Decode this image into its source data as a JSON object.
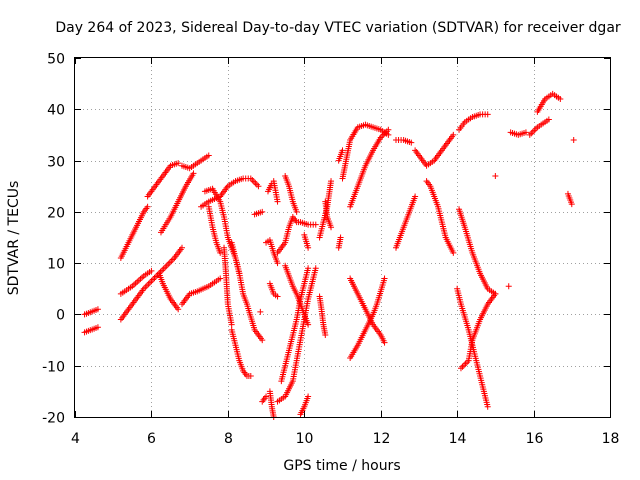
{
  "chart_data": {
    "type": "scatter",
    "title": "Day 264 of 2023, Sidereal Day-to-day VTEC variation (SDTVAR) for receiver dgar",
    "xlabel": "GPS time / hours",
    "ylabel": "SDTVAR / TECUs",
    "xlim": [
      4,
      18
    ],
    "ylim": [
      -20,
      50
    ],
    "xticks": [
      4,
      6,
      8,
      10,
      12,
      14,
      16,
      18
    ],
    "yticks": [
      -20,
      -10,
      0,
      10,
      20,
      30,
      40,
      50
    ],
    "grid": true,
    "legend": "none",
    "marker": "plus",
    "color": "#ff0000",
    "series": [
      {
        "points": [
          [
            4.25,
            0
          ],
          [
            4.6,
            1
          ]
        ]
      },
      {
        "points": [
          [
            4.25,
            -3.5
          ],
          [
            4.6,
            -2.5
          ]
        ]
      },
      {
        "points": [
          [
            5.2,
            11
          ],
          [
            5.4,
            14
          ],
          [
            5.6,
            17
          ],
          [
            5.8,
            20
          ],
          [
            5.9,
            21
          ]
        ]
      },
      {
        "points": [
          [
            5.2,
            4
          ],
          [
            5.5,
            5.5
          ],
          [
            5.8,
            7.5
          ],
          [
            6.0,
            8.5
          ]
        ]
      },
      {
        "points": [
          [
            5.2,
            -1
          ],
          [
            5.4,
            1
          ],
          [
            5.6,
            3
          ],
          [
            5.8,
            5
          ],
          [
            6.0,
            6.5
          ],
          [
            6.2,
            8
          ],
          [
            6.4,
            9.5
          ],
          [
            6.6,
            11
          ],
          [
            6.8,
            13
          ]
        ]
      },
      {
        "points": [
          [
            5.9,
            23
          ],
          [
            6.1,
            25
          ],
          [
            6.3,
            27
          ],
          [
            6.5,
            29
          ],
          [
            6.7,
            29.5
          ]
        ]
      },
      {
        "points": [
          [
            6.2,
            8
          ],
          [
            6.3,
            6
          ],
          [
            6.5,
            3
          ],
          [
            6.7,
            1
          ]
        ]
      },
      {
        "points": [
          [
            6.25,
            16
          ],
          [
            6.5,
            19
          ],
          [
            6.7,
            22
          ],
          [
            6.9,
            25
          ],
          [
            7.1,
            27.5
          ]
        ]
      },
      {
        "points": [
          [
            6.8,
            29
          ],
          [
            7.0,
            28.5
          ],
          [
            7.3,
            30
          ],
          [
            7.5,
            31
          ]
        ]
      },
      {
        "points": [
          [
            6.8,
            2
          ],
          [
            7.0,
            4
          ],
          [
            7.2,
            4.5
          ],
          [
            7.5,
            5.5
          ],
          [
            7.6,
            6
          ],
          [
            7.8,
            7
          ]
        ]
      },
      {
        "points": [
          [
            7.4,
            24
          ],
          [
            7.6,
            24.5
          ],
          [
            7.8,
            22
          ],
          [
            7.9,
            19
          ],
          [
            8.0,
            15
          ],
          [
            8.2,
            11
          ],
          [
            8.3,
            8
          ]
        ]
      },
      {
        "points": [
          [
            7.5,
            21
          ],
          [
            7.6,
            17
          ],
          [
            7.7,
            14
          ],
          [
            7.8,
            12
          ]
        ]
      },
      {
        "points": [
          [
            7.9,
            13
          ],
          [
            7.95,
            8
          ],
          [
            8.0,
            2
          ],
          [
            8.1,
            -2
          ]
        ]
      },
      {
        "points": [
          [
            7.3,
            21
          ],
          [
            7.5,
            22
          ],
          [
            7.8,
            23
          ],
          [
            8.0,
            25
          ],
          [
            8.2,
            26
          ],
          [
            8.4,
            26.5
          ],
          [
            8.6,
            26.5
          ],
          [
            8.8,
            25
          ]
        ]
      },
      {
        "points": [
          [
            8.1,
            14
          ],
          [
            8.3,
            8
          ],
          [
            8.4,
            4
          ],
          [
            8.5,
            2
          ],
          [
            8.7,
            -3
          ],
          [
            8.9,
            -5
          ]
        ]
      },
      {
        "points": [
          [
            8.1,
            -3
          ],
          [
            8.2,
            -6
          ],
          [
            8.3,
            -9
          ],
          [
            8.4,
            -11
          ],
          [
            8.5,
            -12
          ],
          [
            8.6,
            -12
          ]
        ]
      },
      {
        "points": [
          [
            8.7,
            19.5
          ],
          [
            8.9,
            20
          ],
          [
            8.85,
            0.5
          ],
          [
            9.05,
            24
          ],
          [
            9.15,
            25.5
          ]
        ]
      },
      {
        "points": [
          [
            8.9,
            -17
          ],
          [
            9.0,
            -16
          ]
        ]
      },
      {
        "points": [
          [
            9.2,
            26
          ],
          [
            9.3,
            22
          ]
        ]
      },
      {
        "points": [
          [
            9.0,
            14
          ],
          [
            9.1,
            14.5
          ],
          [
            9.2,
            12
          ],
          [
            9.3,
            10
          ]
        ]
      },
      {
        "points": [
          [
            9.1,
            6
          ],
          [
            9.2,
            4
          ],
          [
            9.3,
            3.5
          ]
        ]
      },
      {
        "points": [
          [
            9.1,
            -15
          ],
          [
            9.15,
            -18
          ],
          [
            9.2,
            -20
          ]
        ]
      },
      {
        "points": [
          [
            9.3,
            -17
          ],
          [
            9.5,
            -16
          ],
          [
            9.7,
            -13
          ],
          [
            9.8,
            -9
          ],
          [
            9.9,
            -5
          ],
          [
            10.0,
            -1
          ],
          [
            10.1,
            3
          ],
          [
            10.2,
            6
          ],
          [
            10.3,
            9
          ]
        ]
      },
      {
        "points": [
          [
            9.4,
            -13
          ],
          [
            9.5,
            -10
          ],
          [
            9.6,
            -7
          ],
          [
            9.7,
            -4
          ],
          [
            9.8,
            -1
          ],
          [
            9.9,
            3
          ],
          [
            10.0,
            6
          ],
          [
            10.1,
            9
          ]
        ]
      },
      {
        "points": [
          [
            9.3,
            12
          ],
          [
            9.5,
            14
          ],
          [
            9.6,
            17
          ],
          [
            9.7,
            19
          ],
          [
            9.8,
            18
          ],
          [
            9.9,
            18
          ],
          [
            10.1,
            17.5
          ],
          [
            10.3,
            17.5
          ]
        ]
      },
      {
        "points": [
          [
            9.5,
            9.5
          ],
          [
            9.6,
            7.5
          ],
          [
            9.7,
            5.5
          ],
          [
            9.8,
            4
          ],
          [
            9.9,
            2
          ],
          [
            10.0,
            0
          ],
          [
            10.1,
            -2
          ]
        ]
      },
      {
        "points": [
          [
            9.5,
            27
          ],
          [
            9.6,
            25
          ],
          [
            9.7,
            22
          ],
          [
            9.8,
            20
          ]
        ]
      },
      {
        "points": [
          [
            9.9,
            -19.5
          ],
          [
            10.0,
            -18
          ],
          [
            10.1,
            -16
          ]
        ]
      },
      {
        "points": [
          [
            10.0,
            15.5
          ],
          [
            10.1,
            13
          ]
        ]
      },
      {
        "points": [
          [
            10.4,
            15
          ],
          [
            10.5,
            18
          ],
          [
            10.6,
            21
          ],
          [
            10.7,
            26
          ]
        ]
      },
      {
        "points": [
          [
            10.4,
            3.5
          ],
          [
            10.45,
            1
          ],
          [
            10.5,
            -2
          ],
          [
            10.55,
            -4
          ]
        ]
      },
      {
        "points": [
          [
            10.55,
            22
          ],
          [
            10.6,
            19
          ],
          [
            10.7,
            17
          ]
        ]
      },
      {
        "points": [
          [
            10.9,
            13
          ],
          [
            10.95,
            15
          ]
        ]
      },
      {
        "points": [
          [
            10.9,
            30
          ],
          [
            11.0,
            32
          ]
        ]
      },
      {
        "points": [
          [
            11.0,
            26.5
          ],
          [
            11.2,
            34
          ],
          [
            11.4,
            36.5
          ],
          [
            11.6,
            37
          ],
          [
            11.8,
            36.5
          ],
          [
            12.0,
            36
          ],
          [
            12.2,
            35
          ]
        ]
      },
      {
        "points": [
          [
            11.2,
            21
          ],
          [
            11.4,
            25
          ],
          [
            11.6,
            29
          ],
          [
            11.8,
            32
          ],
          [
            12.0,
            34.5
          ],
          [
            12.2,
            36
          ]
        ]
      },
      {
        "points": [
          [
            11.2,
            -8.5
          ],
          [
            11.4,
            -6
          ],
          [
            11.6,
            -3
          ],
          [
            11.8,
            0
          ],
          [
            11.9,
            2
          ],
          [
            12.0,
            4.5
          ],
          [
            12.1,
            7
          ]
        ]
      },
      {
        "points": [
          [
            11.2,
            7
          ],
          [
            11.4,
            4
          ],
          [
            11.6,
            1
          ],
          [
            11.8,
            -2
          ],
          [
            12.0,
            -4
          ],
          [
            12.1,
            -5.5
          ]
        ]
      },
      {
        "points": [
          [
            12.4,
            13
          ],
          [
            12.6,
            17
          ],
          [
            12.8,
            21
          ],
          [
            12.9,
            23
          ]
        ]
      },
      {
        "points": [
          [
            12.4,
            34
          ],
          [
            12.6,
            34
          ],
          [
            12.8,
            33.5
          ]
        ]
      },
      {
        "points": [
          [
            12.9,
            32
          ],
          [
            13.0,
            31
          ],
          [
            13.2,
            29
          ],
          [
            13.4,
            30
          ],
          [
            13.6,
            32
          ],
          [
            13.8,
            34
          ],
          [
            13.9,
            35
          ]
        ]
      },
      {
        "points": [
          [
            13.2,
            26
          ],
          [
            13.3,
            25
          ],
          [
            13.5,
            21
          ],
          [
            13.6,
            18
          ],
          [
            13.7,
            15
          ],
          [
            13.9,
            12
          ]
        ]
      },
      {
        "points": [
          [
            14.05,
            36
          ],
          [
            14.2,
            37.5
          ],
          [
            14.4,
            38.5
          ],
          [
            14.6,
            39
          ],
          [
            14.8,
            39
          ]
        ]
      },
      {
        "points": [
          [
            14.05,
            20.5
          ],
          [
            14.2,
            17
          ],
          [
            14.4,
            12
          ],
          [
            14.6,
            8
          ],
          [
            14.8,
            5
          ],
          [
            15.0,
            4
          ]
        ]
      },
      {
        "points": [
          [
            14.0,
            5
          ],
          [
            14.1,
            2
          ],
          [
            14.3,
            -3
          ],
          [
            14.5,
            -9
          ],
          [
            14.6,
            -12
          ],
          [
            14.7,
            -15
          ],
          [
            14.8,
            -18
          ]
        ]
      },
      {
        "points": [
          [
            14.1,
            -10.5
          ],
          [
            14.3,
            -9
          ],
          [
            14.4,
            -5
          ],
          [
            14.6,
            -1
          ],
          [
            14.8,
            2
          ],
          [
            15.0,
            4
          ]
        ]
      },
      {
        "points": [
          [
            15.0,
            27
          ],
          [
            15.35,
            5.5
          ]
        ]
      },
      {
        "points": [
          [
            15.4,
            35.5
          ],
          [
            15.6,
            35
          ],
          [
            15.8,
            35.5
          ]
        ]
      },
      {
        "points": [
          [
            15.9,
            35
          ],
          [
            16.1,
            36.5
          ],
          [
            16.3,
            37.5
          ],
          [
            16.4,
            38
          ]
        ]
      },
      {
        "points": [
          [
            16.1,
            39.5
          ],
          [
            16.3,
            42
          ],
          [
            16.5,
            43
          ],
          [
            16.7,
            42
          ]
        ]
      },
      {
        "points": [
          [
            16.9,
            23.5
          ],
          [
            17.0,
            21.5
          ],
          [
            17.05,
            34
          ]
        ]
      }
    ]
  }
}
